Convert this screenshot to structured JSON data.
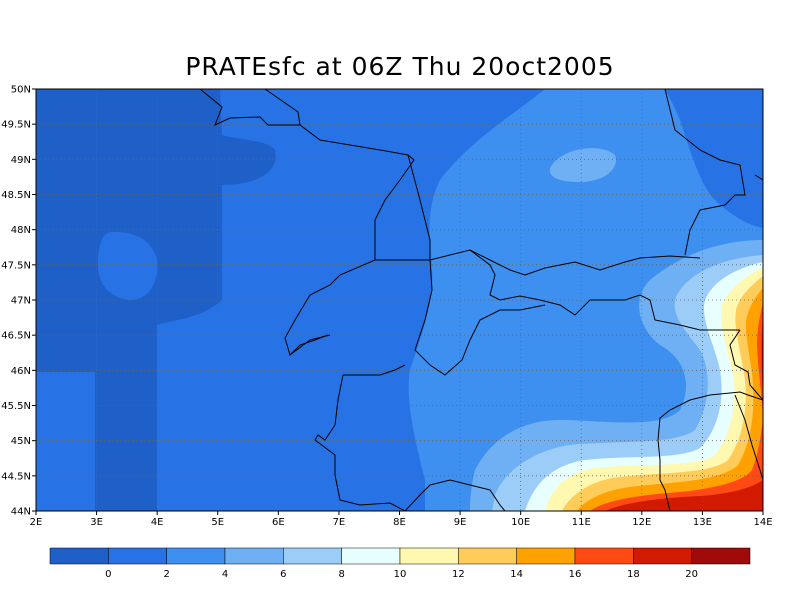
{
  "title": "PRATEsfc at 06Z Thu 20oct2005",
  "chart_data": {
    "type": "heatmap",
    "title": "PRATEsfc at 06Z Thu 20oct2005",
    "xlim": [
      2,
      14
    ],
    "ylim": [
      44,
      50
    ],
    "grid": true,
    "x_ticks": [
      "2E",
      "3E",
      "4E",
      "5E",
      "6E",
      "7E",
      "8E",
      "9E",
      "10E",
      "11E",
      "12E",
      "13E",
      "14E"
    ],
    "y_ticks": [
      "44N",
      "44.5N",
      "45N",
      "45.5N",
      "46N",
      "46.5N",
      "47N",
      "47.5N",
      "48N",
      "48.5N",
      "49N",
      "49.5N",
      "50N"
    ],
    "colorbar": {
      "labels": [
        "0",
        "2",
        "4",
        "6",
        "8",
        "10",
        "12",
        "14",
        "16",
        "18",
        "20"
      ],
      "colors": [
        "#1f5fc8",
        "#2773e6",
        "#3d8ff0",
        "#6fb0f5",
        "#9ccdf8",
        "#e8ffff",
        "#fff8b0",
        "#ffcc5a",
        "#ffa100",
        "#ff4a14",
        "#d11a00",
        "#a00a0a"
      ]
    }
  }
}
